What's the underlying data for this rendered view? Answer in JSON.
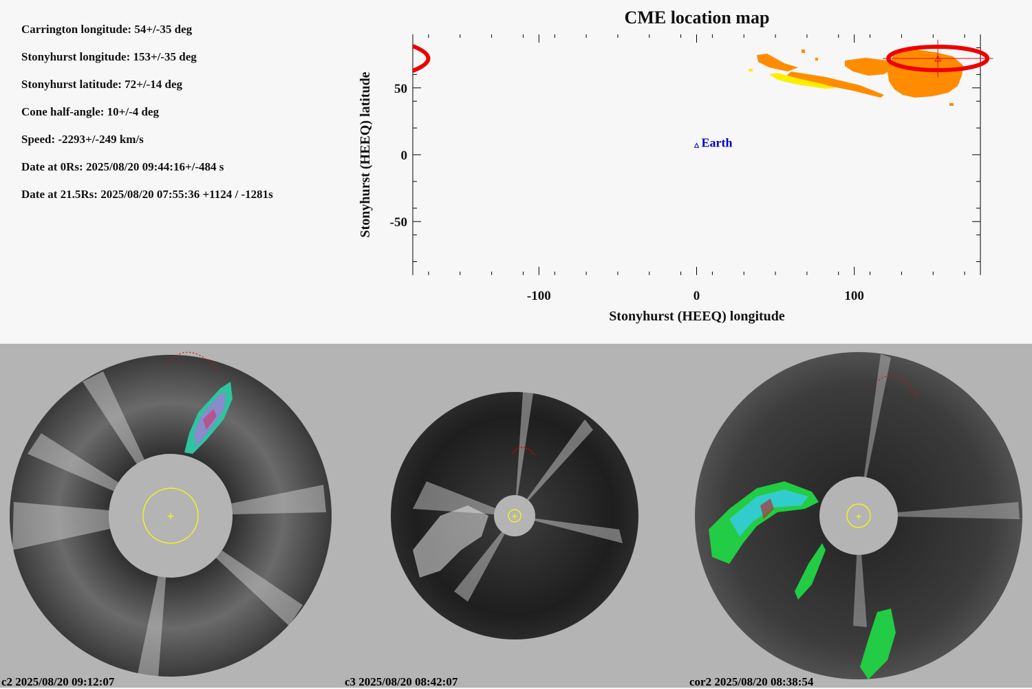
{
  "parameters": [
    "Carrington longitude: 54+/-35 deg",
    "Stonyhurst longitude: 153+/-35 deg",
    "Stonyhurst latitude: 72+/-14 deg",
    "Cone half-angle: 10+/-4 deg",
    "Speed: -2293+/-249 km/s",
    "Date at 0Rs: 2025/08/20 09:44:16+/-484 s",
    "Date at 21.5Rs: 2025/08/20 07:55:36 +1124 / -1281s"
  ],
  "chart_data": {
    "type": "scatter",
    "title": "CME location map",
    "xlabel": "Stonyhurst (HEEQ) longitude",
    "ylabel": "Stonyhurst (HEEQ) latitude",
    "xlim": [
      -180,
      180
    ],
    "ylim": [
      -90,
      90
    ],
    "xticks": [
      -100,
      0,
      100
    ],
    "yticks": [
      -50,
      0,
      50
    ],
    "grid": false,
    "points": [
      {
        "name": "Earth",
        "x": 0,
        "y": 7
      },
      {
        "name": "",
        "x": 153,
        "y": 72,
        "xerr": 35,
        "yerr": 14
      }
    ],
    "cme_footprint_center": {
      "x": 153,
      "y": 72
    },
    "colors": {
      "earth": "#0000cc",
      "cme": "#ee0000",
      "emission": "#ff8c00",
      "emission_core": "#22cc66",
      "emission_edge": "#ffee00"
    }
  },
  "images": [
    {
      "id": "c2",
      "caption": "c2 2025/08/20 09:12:07"
    },
    {
      "id": "c3",
      "caption": "c3 2025/08/20 08:42:07"
    },
    {
      "id": "cor2",
      "caption": "cor2 2025/08/20 08:38:54"
    }
  ]
}
